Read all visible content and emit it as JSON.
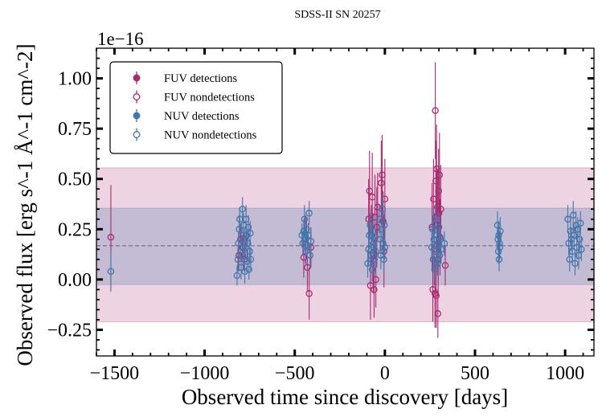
{
  "chart_data": {
    "type": "scatter",
    "title": "SDSS-II SN 20257",
    "xlabel": "Observed time since discovery [days]",
    "ylabel": "Observed flux [erg s^-1 Å^-1 cm^-2]",
    "offset_label": "1e−16",
    "xlim": [
      -1600,
      1160
    ],
    "ylim": [
      -0.38,
      1.15
    ],
    "x_ticks": [
      -1500,
      -1000,
      -500,
      0,
      500,
      1000
    ],
    "x_tick_labels": [
      "−1500",
      "−1000",
      "−500",
      "0",
      "500",
      "1000"
    ],
    "y_ticks": [
      -0.25,
      0.0,
      0.25,
      0.5,
      0.75,
      1.0
    ],
    "y_tick_labels": [
      "−0.25",
      "0.00",
      "0.25",
      "0.50",
      "0.75",
      "1.00"
    ],
    "grid": false,
    "legend_position": "top-left",
    "colors": {
      "fuv": "#a8296f",
      "nuv": "#4474aa"
    },
    "reference": {
      "median": 0.168,
      "fuv_band": [
        -0.21,
        0.555
      ],
      "nuv_band": [
        -0.025,
        0.355
      ]
    },
    "series": [
      {
        "name": "FUV detections",
        "band": "fuv",
        "filled": true,
        "points": []
      },
      {
        "name": "FUV nondetections",
        "band": "fuv",
        "filled": false,
        "points": [
          [
            -1520,
            0.21,
            0.26
          ],
          [
            -810,
            0.12,
            0.08
          ],
          [
            -800,
            0.2,
            0.07
          ],
          [
            -790,
            0.16,
            0.06
          ],
          [
            -780,
            0.1,
            0.06
          ],
          [
            -770,
            0.22,
            0.07
          ],
          [
            -450,
            0.11,
            0.1
          ],
          [
            -440,
            0.2,
            0.12
          ],
          [
            -430,
            0.06,
            0.12
          ],
          [
            -420,
            -0.07,
            0.13
          ],
          [
            -410,
            0.16,
            0.1
          ],
          [
            -90,
            0.3,
            0.2
          ],
          [
            -85,
            0.44,
            0.2
          ],
          [
            -80,
            -0.03,
            0.17
          ],
          [
            -75,
            0.22,
            0.15
          ],
          [
            -70,
            0.41,
            0.22
          ],
          [
            -65,
            0.13,
            0.2
          ],
          [
            -60,
            -0.05,
            0.14
          ],
          [
            -55,
            0.31,
            0.21
          ],
          [
            -50,
            0.0,
            0.14
          ],
          [
            -45,
            0.26,
            0.2
          ],
          [
            -40,
            0.36,
            0.17
          ],
          [
            -20,
            0.48,
            0.21
          ],
          [
            -15,
            0.52,
            0.2
          ],
          [
            -10,
            0.29,
            0.15
          ],
          [
            -5,
            0.14,
            0.18
          ],
          [
            0,
            0.4,
            0.2
          ],
          [
            262,
            0.26,
            0.22
          ],
          [
            266,
            -0.05,
            0.16
          ],
          [
            270,
            0.4,
            0.2
          ],
          [
            274,
            0.15,
            0.18
          ],
          [
            278,
            -0.07,
            0.17
          ],
          [
            280,
            0.84,
            0.24
          ],
          [
            283,
            0.49,
            0.2
          ],
          [
            285,
            -0.08,
            0.16
          ],
          [
            287,
            0.55,
            0.22
          ],
          [
            290,
            0.27,
            0.2
          ],
          [
            292,
            0.36,
            0.19
          ],
          [
            294,
            -0.17,
            0.12
          ],
          [
            296,
            0.1,
            0.18
          ],
          [
            298,
            0.44,
            0.21
          ],
          [
            300,
            0.33,
            0.2
          ],
          [
            303,
            0.52,
            0.21
          ],
          [
            306,
            0.21,
            0.19
          ],
          [
            310,
            0.35,
            0.22
          ],
          [
            335,
            0.07,
            0.1
          ]
        ]
      },
      {
        "name": "NUV detections",
        "band": "nuv",
        "filled": true,
        "points": []
      },
      {
        "name": "NUV nondetections",
        "band": "nuv",
        "filled": false,
        "points": [
          [
            -1520,
            0.04,
            0.1
          ],
          [
            -820,
            0.02,
            0.05
          ],
          [
            -815,
            0.1,
            0.06
          ],
          [
            -812,
            0.18,
            0.06
          ],
          [
            -808,
            0.25,
            0.07
          ],
          [
            -805,
            0.3,
            0.06
          ],
          [
            -800,
            0.14,
            0.05
          ],
          [
            -797,
            0.06,
            0.06
          ],
          [
            -794,
            0.22,
            0.06
          ],
          [
            -790,
            0.35,
            0.06
          ],
          [
            -787,
            0.12,
            0.07
          ],
          [
            -784,
            0.27,
            0.06
          ],
          [
            -780,
            0.2,
            0.06
          ],
          [
            -777,
            0.04,
            0.06
          ],
          [
            -774,
            0.16,
            0.06
          ],
          [
            -770,
            0.3,
            0.07
          ],
          [
            -767,
            0.22,
            0.05
          ],
          [
            -764,
            0.09,
            0.06
          ],
          [
            -760,
            0.18,
            0.07
          ],
          [
            -757,
            0.26,
            0.06
          ],
          [
            -754,
            0.05,
            0.05
          ],
          [
            -750,
            0.14,
            0.06
          ],
          [
            -747,
            0.23,
            0.06
          ],
          [
            -744,
            0.1,
            0.06
          ],
          [
            -460,
            0.22,
            0.06
          ],
          [
            -455,
            0.18,
            0.06
          ],
          [
            -450,
            0.24,
            0.06
          ],
          [
            -446,
            0.3,
            0.07
          ],
          [
            -442,
            0.2,
            0.06
          ],
          [
            -438,
            0.14,
            0.07
          ],
          [
            -434,
            0.25,
            0.06
          ],
          [
            -430,
            0.17,
            0.06
          ],
          [
            -425,
            0.22,
            0.06
          ],
          [
            -420,
            0.33,
            0.06
          ],
          [
            -415,
            0.12,
            0.06
          ],
          [
            -410,
            0.19,
            0.06
          ],
          [
            -95,
            0.08,
            0.07
          ],
          [
            -90,
            0.15,
            0.08
          ],
          [
            -86,
            0.22,
            0.07
          ],
          [
            -82,
            0.27,
            0.06
          ],
          [
            -78,
            0.12,
            0.07
          ],
          [
            -74,
            0.19,
            0.06
          ],
          [
            -70,
            0.05,
            0.06
          ],
          [
            -66,
            0.24,
            0.07
          ],
          [
            -62,
            0.16,
            0.06
          ],
          [
            -58,
            0.1,
            0.07
          ],
          [
            -54,
            0.21,
            0.06
          ],
          [
            -50,
            0.14,
            0.07
          ],
          [
            -30,
            0.3,
            0.07
          ],
          [
            -26,
            0.2,
            0.06
          ],
          [
            -22,
            0.12,
            0.07
          ],
          [
            -18,
            0.25,
            0.06
          ],
          [
            -14,
            0.35,
            0.07
          ],
          [
            -10,
            0.18,
            0.06
          ],
          [
            -6,
            0.1,
            0.06
          ],
          [
            -3,
            0.27,
            0.06
          ],
          [
            0,
            0.16,
            0.06
          ],
          [
            260,
            0.16,
            0.07
          ],
          [
            264,
            0.25,
            0.07
          ],
          [
            268,
            0.1,
            0.06
          ],
          [
            272,
            0.2,
            0.07
          ],
          [
            276,
            0.05,
            0.06
          ],
          [
            280,
            0.3,
            0.07
          ],
          [
            284,
            0.14,
            0.07
          ],
          [
            288,
            0.22,
            0.06
          ],
          [
            292,
            0.08,
            0.06
          ],
          [
            296,
            0.18,
            0.07
          ],
          [
            300,
            0.26,
            0.07
          ],
          [
            304,
            0.12,
            0.06
          ],
          [
            308,
            0.2,
            0.06
          ],
          [
            312,
            0.15,
            0.07
          ],
          [
            330,
            0.18,
            0.06
          ],
          [
            625,
            0.27,
            0.07
          ],
          [
            628,
            0.2,
            0.06
          ],
          [
            630,
            0.14,
            0.06
          ],
          [
            632,
            0.22,
            0.07
          ],
          [
            634,
            0.1,
            0.06
          ],
          [
            636,
            0.18,
            0.06
          ],
          [
            638,
            0.16,
            0.06
          ],
          [
            640,
            0.24,
            0.07
          ],
          [
            1015,
            0.3,
            0.07
          ],
          [
            1020,
            0.18,
            0.06
          ],
          [
            1025,
            0.1,
            0.06
          ],
          [
            1030,
            0.24,
            0.07
          ],
          [
            1035,
            0.2,
            0.06
          ],
          [
            1040,
            0.14,
            0.06
          ],
          [
            1045,
            0.32,
            0.07
          ],
          [
            1050,
            0.22,
            0.06
          ],
          [
            1055,
            0.08,
            0.06
          ],
          [
            1060,
            0.27,
            0.07
          ],
          [
            1065,
            0.16,
            0.06
          ],
          [
            1070,
            0.25,
            0.06
          ],
          [
            1075,
            0.12,
            0.07
          ],
          [
            1080,
            0.2,
            0.06
          ],
          [
            1085,
            0.28,
            0.06
          ],
          [
            1090,
            0.15,
            0.06
          ]
        ]
      }
    ]
  }
}
